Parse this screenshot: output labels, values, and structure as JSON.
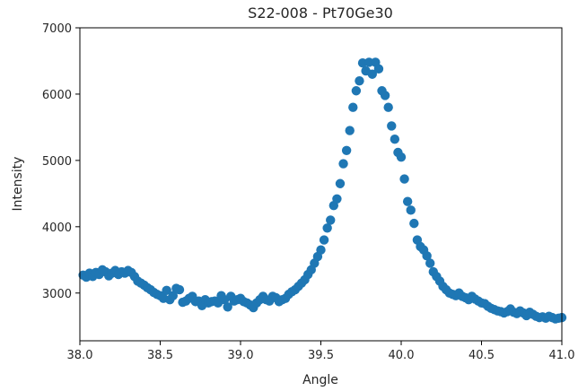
{
  "chart_data": {
    "type": "scatter",
    "title": "S22-008 - Pt70Ge30",
    "xlabel": "Angle",
    "ylabel": "Intensity",
    "xlim": [
      38.0,
      41.0
    ],
    "ylim": [
      2280,
      7000
    ],
    "xticks": [
      38.0,
      38.5,
      39.0,
      39.5,
      40.0,
      40.5,
      41.0
    ],
    "xtick_labels": [
      "38.0",
      "38.5",
      "39.0",
      "39.5",
      "40.0",
      "40.5",
      "41.0"
    ],
    "yticks": [
      3000,
      4000,
      5000,
      6000,
      7000
    ],
    "ytick_labels": [
      "3000",
      "4000",
      "5000",
      "6000",
      "7000"
    ],
    "grid": false,
    "marker_color": "#1f77b4",
    "x": [
      38.02,
      38.04,
      38.06,
      38.08,
      38.1,
      38.12,
      38.14,
      38.16,
      38.18,
      38.2,
      38.22,
      38.24,
      38.26,
      38.28,
      38.3,
      38.32,
      38.34,
      38.36,
      38.38,
      38.4,
      38.42,
      38.44,
      38.46,
      38.48,
      38.5,
      38.52,
      38.54,
      38.56,
      38.58,
      38.6,
      38.62,
      38.64,
      38.66,
      38.68,
      38.7,
      38.72,
      38.74,
      38.76,
      38.78,
      38.8,
      38.82,
      38.84,
      38.86,
      38.88,
      38.9,
      38.92,
      38.94,
      38.96,
      38.98,
      39.0,
      39.02,
      39.04,
      39.06,
      39.08,
      39.1,
      39.12,
      39.14,
      39.16,
      39.18,
      39.2,
      39.22,
      39.24,
      39.26,
      39.28,
      39.3,
      39.32,
      39.34,
      39.36,
      39.38,
      39.4,
      39.42,
      39.44,
      39.46,
      39.48,
      39.5,
      39.52,
      39.54,
      39.56,
      39.58,
      39.6,
      39.62,
      39.64,
      39.66,
      39.68,
      39.7,
      39.72,
      39.74,
      39.76,
      39.78,
      39.8,
      39.82,
      39.84,
      39.86,
      39.88,
      39.9,
      39.92,
      39.94,
      39.96,
      39.98,
      40.0,
      40.02,
      40.04,
      40.06,
      40.08,
      40.1,
      40.12,
      40.14,
      40.16,
      40.18,
      40.2,
      40.22,
      40.24,
      40.26,
      40.28,
      40.3,
      40.32,
      40.34,
      40.36,
      40.38,
      40.4,
      40.42,
      40.44,
      40.46,
      40.48,
      40.5,
      40.52,
      40.54,
      40.56,
      40.58,
      40.6,
      40.62,
      40.64,
      40.66,
      40.68,
      40.7,
      40.72,
      40.74,
      40.76,
      40.78,
      40.8,
      40.82,
      40.84,
      40.86,
      40.88,
      40.9,
      40.92,
      40.94,
      40.96,
      40.98,
      41.0
    ],
    "y": [
      3270,
      3240,
      3300,
      3250,
      3310,
      3280,
      3350,
      3320,
      3260,
      3300,
      3340,
      3280,
      3320,
      3300,
      3340,
      3310,
      3250,
      3180,
      3150,
      3120,
      3080,
      3050,
      3010,
      2980,
      2960,
      2920,
      3040,
      2900,
      2960,
      3070,
      3050,
      2860,
      2880,
      2920,
      2950,
      2870,
      2880,
      2810,
      2900,
      2850,
      2870,
      2880,
      2850,
      2960,
      2900,
      2790,
      2950,
      2880,
      2900,
      2920,
      2870,
      2850,
      2820,
      2780,
      2850,
      2900,
      2950,
      2900,
      2880,
      2950,
      2930,
      2870,
      2900,
      2920,
      2980,
      3020,
      3050,
      3100,
      3150,
      3200,
      3280,
      3350,
      3450,
      3550,
      3650,
      3800,
      3980,
      4100,
      4320,
      4420,
      4650,
      4950,
      5150,
      5450,
      5800,
      6050,
      6200,
      6470,
      6350,
      6480,
      6300,
      6480,
      6380,
      6050,
      5980,
      5800,
      5520,
      5320,
      5120,
      5050,
      4720,
      4380,
      4250,
      4050,
      3800,
      3700,
      3650,
      3560,
      3450,
      3320,
      3250,
      3180,
      3100,
      3050,
      3000,
      2980,
      2960,
      3000,
      2950,
      2930,
      2900,
      2950,
      2910,
      2880,
      2850,
      2840,
      2800,
      2770,
      2750,
      2730,
      2720,
      2700,
      2720,
      2760,
      2710,
      2690,
      2730,
      2700,
      2660,
      2710,
      2680,
      2650,
      2630,
      2640,
      2620,
      2650,
      2630,
      2610,
      2620,
      2630
    ]
  }
}
